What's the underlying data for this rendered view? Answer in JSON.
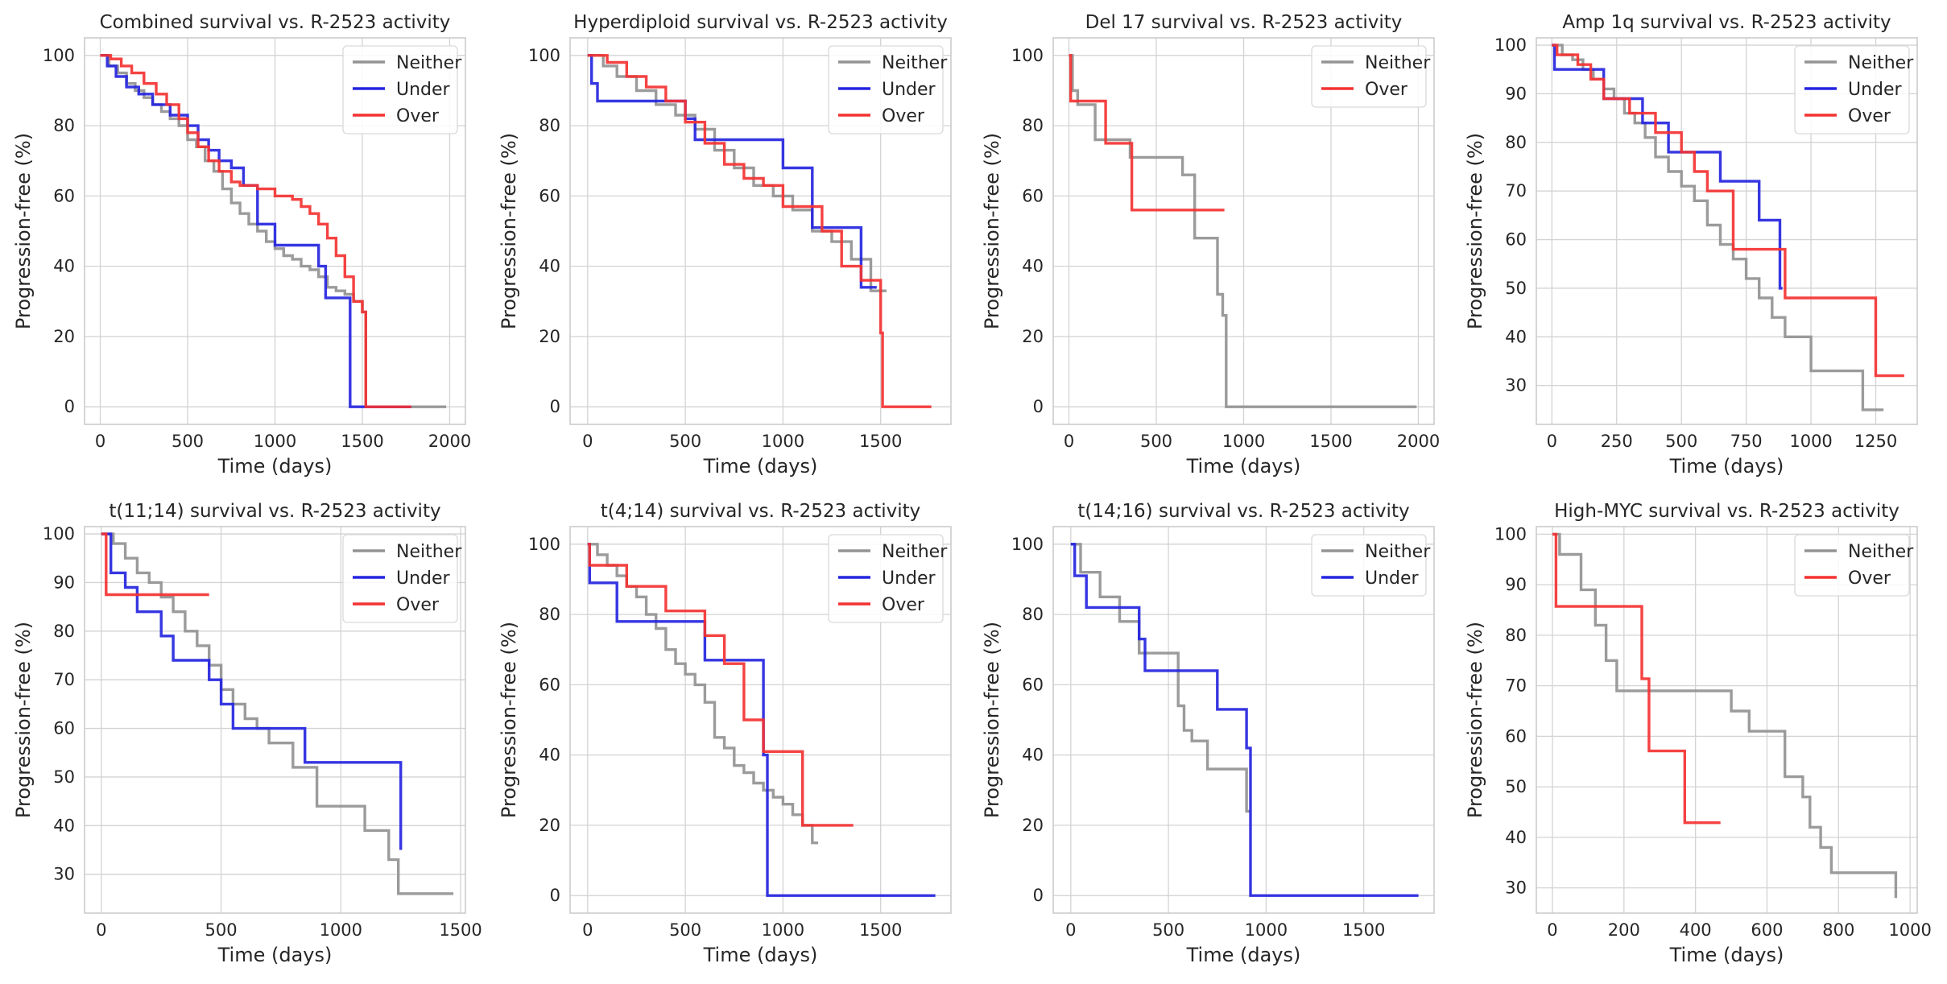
{
  "figure": {
    "legend_names": {
      "neither": "Neither",
      "under": "Under",
      "over": "Over"
    },
    "colors": {
      "neither": "#939393",
      "under": "#2525e0",
      "over": "#f43232",
      "grid": "#d3d3d3",
      "frame": "#cccccc",
      "text": "#262626"
    }
  },
  "chart_data": [
    {
      "type": "line",
      "step": true,
      "title": "Combined survival vs. R-2523 activity",
      "xlabel": "Time (days)",
      "ylabel": "Progression-free (%)",
      "xlim": [
        -90,
        2090
      ],
      "ylim": [
        -5,
        105
      ],
      "xticks": [
        0,
        500,
        1000,
        1500,
        2000
      ],
      "yticks": [
        0,
        20,
        40,
        60,
        80,
        100
      ],
      "grid": true,
      "legend": "top-right",
      "series": [
        {
          "name": "Neither",
          "x": [
            0,
            50,
            100,
            150,
            200,
            250,
            300,
            350,
            400,
            450,
            500,
            550,
            600,
            650,
            700,
            750,
            800,
            850,
            900,
            950,
            1000,
            1050,
            1100,
            1150,
            1200,
            1250,
            1300,
            1350,
            1400,
            1450,
            1500,
            1520,
            1980
          ],
          "y": [
            100,
            97,
            95,
            92,
            90,
            88,
            86,
            84,
            82,
            80,
            76,
            74,
            70,
            67,
            62,
            58,
            55,
            52,
            50,
            47,
            45,
            43,
            42,
            40,
            39,
            37,
            34,
            33,
            32,
            30,
            27,
            0,
            0
          ]
        },
        {
          "name": "Under",
          "x": [
            0,
            40,
            90,
            150,
            220,
            300,
            400,
            500,
            560,
            620,
            680,
            750,
            820,
            900,
            1000,
            1100,
            1250,
            1290,
            1350,
            1400,
            1430,
            1780
          ],
          "y": [
            100,
            97,
            94,
            91,
            89,
            86,
            83,
            80,
            76,
            73,
            70,
            68,
            63,
            52,
            46,
            46,
            40,
            31,
            31,
            31,
            0,
            0
          ]
        },
        {
          "name": "Over",
          "x": [
            0,
            60,
            120,
            180,
            250,
            320,
            380,
            450,
            500,
            560,
            620,
            680,
            750,
            800,
            900,
            1000,
            1100,
            1150,
            1200,
            1250,
            1300,
            1350,
            1400,
            1450,
            1500,
            1520,
            1780
          ],
          "y": [
            100,
            99,
            97,
            95,
            92,
            89,
            86,
            82,
            78,
            74,
            70,
            67,
            64,
            63,
            62,
            60,
            59,
            57,
            55,
            52,
            48,
            43,
            37,
            30,
            27,
            0,
            0
          ]
        }
      ]
    },
    {
      "type": "line",
      "step": true,
      "title": "Hyperdiploid survival vs. R-2523 activity",
      "xlabel": "Time (days)",
      "ylabel": "Progression-free (%)",
      "xlim": [
        -90,
        1860
      ],
      "ylim": [
        -5,
        105
      ],
      "xticks": [
        0,
        500,
        1000,
        1500
      ],
      "yticks": [
        0,
        20,
        40,
        60,
        80,
        100
      ],
      "grid": true,
      "legend": "top-right",
      "series": [
        {
          "name": "Neither",
          "x": [
            0,
            80,
            150,
            250,
            350,
            450,
            550,
            650,
            750,
            850,
            950,
            1050,
            1150,
            1250,
            1350,
            1450,
            1530
          ],
          "y": [
            100,
            97,
            94,
            90,
            86,
            83,
            79,
            73,
            68,
            63,
            60,
            56,
            50,
            47,
            42,
            33,
            33
          ]
        },
        {
          "name": "Under",
          "x": [
            0,
            20,
            50,
            400,
            500,
            550,
            700,
            1000,
            1150,
            1300,
            1400,
            1480
          ],
          "y": [
            100,
            92,
            87,
            87,
            82,
            76,
            76,
            68,
            51,
            51,
            34,
            34
          ]
        },
        {
          "name": "Over",
          "x": [
            0,
            100,
            200,
            300,
            400,
            500,
            600,
            700,
            800,
            900,
            1000,
            1100,
            1200,
            1300,
            1400,
            1500,
            1510,
            1760
          ],
          "y": [
            100,
            98,
            94,
            91,
            87,
            81,
            75,
            69,
            65,
            63,
            57,
            57,
            50,
            40,
            36,
            21,
            0,
            0
          ]
        }
      ]
    },
    {
      "type": "line",
      "step": true,
      "title": "Del 17 survival vs. R-2523 activity",
      "xlabel": "Time (days)",
      "ylabel": "Progression-free (%)",
      "xlim": [
        -90,
        2090
      ],
      "ylim": [
        -5,
        105
      ],
      "xticks": [
        0,
        500,
        1000,
        1500,
        2000
      ],
      "yticks": [
        0,
        20,
        40,
        60,
        80,
        100
      ],
      "grid": true,
      "legend": "top-right",
      "series": [
        {
          "name": "Neither",
          "x": [
            0,
            20,
            50,
            150,
            350,
            650,
            720,
            850,
            880,
            900,
            1990
          ],
          "y": [
            100,
            90,
            86,
            76,
            71,
            66,
            48,
            32,
            26,
            0,
            0
          ]
        },
        {
          "name": "Over",
          "x": [
            0,
            10,
            210,
            360,
            890
          ],
          "y": [
            100,
            87,
            75,
            56,
            56
          ]
        }
      ]
    },
    {
      "type": "line",
      "step": true,
      "title": "Amp 1q survival vs. R-2523 activity",
      "xlabel": "Time (days)",
      "ylabel": "Progression-free (%)",
      "xlim": [
        -60,
        1410
      ],
      "ylim": [
        22,
        101.5
      ],
      "xticks": [
        0,
        250,
        500,
        750,
        1000,
        1250
      ],
      "yticks": [
        30,
        40,
        50,
        60,
        70,
        80,
        90,
        100
      ],
      "grid": true,
      "legend": "top-right",
      "series": [
        {
          "name": "Neither",
          "x": [
            0,
            40,
            80,
            120,
            160,
            200,
            240,
            280,
            320,
            360,
            400,
            450,
            500,
            550,
            600,
            650,
            700,
            750,
            800,
            850,
            900,
            1000,
            1100,
            1200,
            1280
          ],
          "y": [
            100,
            98,
            97,
            95,
            93,
            91,
            89,
            86,
            84,
            81,
            77,
            74,
            71,
            68,
            63,
            59,
            56,
            52,
            48,
            44,
            40,
            33,
            33,
            25,
            25
          ]
        },
        {
          "name": "Under",
          "x": [
            0,
            10,
            180,
            200,
            350,
            450,
            650,
            800,
            880,
            890
          ],
          "y": [
            100,
            95,
            95,
            89,
            84,
            78,
            72,
            64,
            50,
            50
          ]
        },
        {
          "name": "Over",
          "x": [
            0,
            20,
            100,
            150,
            200,
            300,
            400,
            500,
            550,
            600,
            700,
            900,
            1200,
            1250,
            1360
          ],
          "y": [
            100,
            98,
            96,
            93,
            89,
            86,
            82,
            78,
            74,
            70,
            58,
            48,
            48,
            32,
            32
          ]
        }
      ]
    },
    {
      "type": "line",
      "step": true,
      "title": "t(11;14) survival vs. R-2523 activity",
      "xlabel": "Time (days)",
      "ylabel": "Progression-free (%)",
      "xlim": [
        -70,
        1520
      ],
      "ylim": [
        22,
        101.5
      ],
      "xticks": [
        0,
        500,
        1000,
        1500
      ],
      "yticks": [
        30,
        40,
        50,
        60,
        70,
        80,
        90,
        100
      ],
      "grid": true,
      "legend": "top-right",
      "series": [
        {
          "name": "Neither",
          "x": [
            0,
            50,
            100,
            150,
            200,
            250,
            300,
            350,
            400,
            450,
            500,
            550,
            600,
            650,
            700,
            800,
            900,
            1000,
            1100,
            1200,
            1240,
            1470
          ],
          "y": [
            100,
            98,
            95,
            92,
            90,
            87,
            84,
            80,
            77,
            73,
            68,
            65,
            62,
            60,
            57,
            52,
            44,
            44,
            39,
            33,
            26,
            26
          ]
        },
        {
          "name": "Under",
          "x": [
            0,
            40,
            100,
            150,
            250,
            300,
            450,
            500,
            550,
            850,
            1250
          ],
          "y": [
            100,
            92,
            89,
            84,
            79,
            74,
            70,
            65,
            60,
            53,
            35
          ]
        },
        {
          "name": "Over",
          "x": [
            0,
            20,
            450
          ],
          "y": [
            100,
            87.5,
            87.5
          ]
        }
      ]
    },
    {
      "type": "line",
      "step": true,
      "title": "t(4;14) survival vs. R-2523 activity",
      "xlabel": "Time (days)",
      "ylabel": "Progression-free (%)",
      "xlim": [
        -90,
        1860
      ],
      "ylim": [
        -5,
        105
      ],
      "xticks": [
        0,
        500,
        1000,
        1500
      ],
      "yticks": [
        0,
        20,
        40,
        60,
        80,
        100
      ],
      "grid": true,
      "legend": "top-right",
      "series": [
        {
          "name": "Neither",
          "x": [
            0,
            50,
            100,
            150,
            200,
            250,
            300,
            350,
            400,
            450,
            500,
            550,
            600,
            650,
            700,
            750,
            800,
            850,
            900,
            950,
            1000,
            1050,
            1100,
            1150,
            1180
          ],
          "y": [
            100,
            97,
            94,
            91,
            88,
            85,
            80,
            76,
            70,
            66,
            63,
            60,
            55,
            45,
            42,
            37,
            35,
            32,
            30,
            28,
            26,
            23,
            20,
            15,
            15
          ]
        },
        {
          "name": "Under",
          "x": [
            0,
            10,
            150,
            600,
            900,
            920,
            1780
          ],
          "y": [
            100,
            89,
            78,
            67,
            40,
            0,
            0
          ]
        },
        {
          "name": "Over",
          "x": [
            0,
            10,
            200,
            400,
            600,
            700,
            800,
            900,
            1100,
            1360
          ],
          "y": [
            100,
            94,
            88,
            81,
            74,
            66,
            50,
            41,
            20,
            20
          ]
        }
      ]
    },
    {
      "type": "line",
      "step": true,
      "title": "t(14;16) survival vs. R-2523 activity",
      "xlabel": "Time (days)",
      "ylabel": "Progression-free (%)",
      "xlim": [
        -90,
        1860
      ],
      "ylim": [
        -5,
        105
      ],
      "xticks": [
        0,
        500,
        1000,
        1500
      ],
      "yticks": [
        0,
        20,
        40,
        60,
        80,
        100
      ],
      "grid": true,
      "legend": "top-right",
      "series": [
        {
          "name": "Neither",
          "x": [
            0,
            50,
            150,
            250,
            350,
            550,
            580,
            620,
            700,
            900,
            920
          ],
          "y": [
            100,
            92,
            85,
            78,
            69,
            54,
            47,
            44,
            36,
            24,
            24
          ]
        },
        {
          "name": "Under",
          "x": [
            0,
            20,
            80,
            350,
            380,
            550,
            750,
            900,
            920,
            1780
          ],
          "y": [
            100,
            91,
            82,
            73,
            64,
            64,
            53,
            42,
            0,
            0
          ]
        }
      ]
    },
    {
      "type": "line",
      "step": true,
      "title": "High-MYC survival vs. R-2523 activity",
      "xlabel": "Time (days)",
      "ylabel": "Progression-free (%)",
      "xlim": [
        -45,
        1020
      ],
      "ylim": [
        25,
        101.5
      ],
      "xticks": [
        0,
        200,
        400,
        600,
        800,
        1000
      ],
      "yticks": [
        30,
        40,
        50,
        60,
        70,
        80,
        90,
        100
      ],
      "grid": true,
      "legend": "top-right",
      "series": [
        {
          "name": "Neither",
          "x": [
            0,
            20,
            80,
            120,
            150,
            180,
            480,
            500,
            550,
            650,
            700,
            720,
            750,
            780,
            960
          ],
          "y": [
            100,
            96,
            89,
            82,
            75,
            69,
            69,
            65,
            61,
            52,
            48,
            42,
            38,
            33,
            28
          ]
        },
        {
          "name": "Over",
          "x": [
            0,
            10,
            250,
            270,
            370,
            470
          ],
          "y": [
            100,
            85.7,
            71.4,
            57.1,
            42.9,
            42.9
          ]
        }
      ]
    }
  ]
}
